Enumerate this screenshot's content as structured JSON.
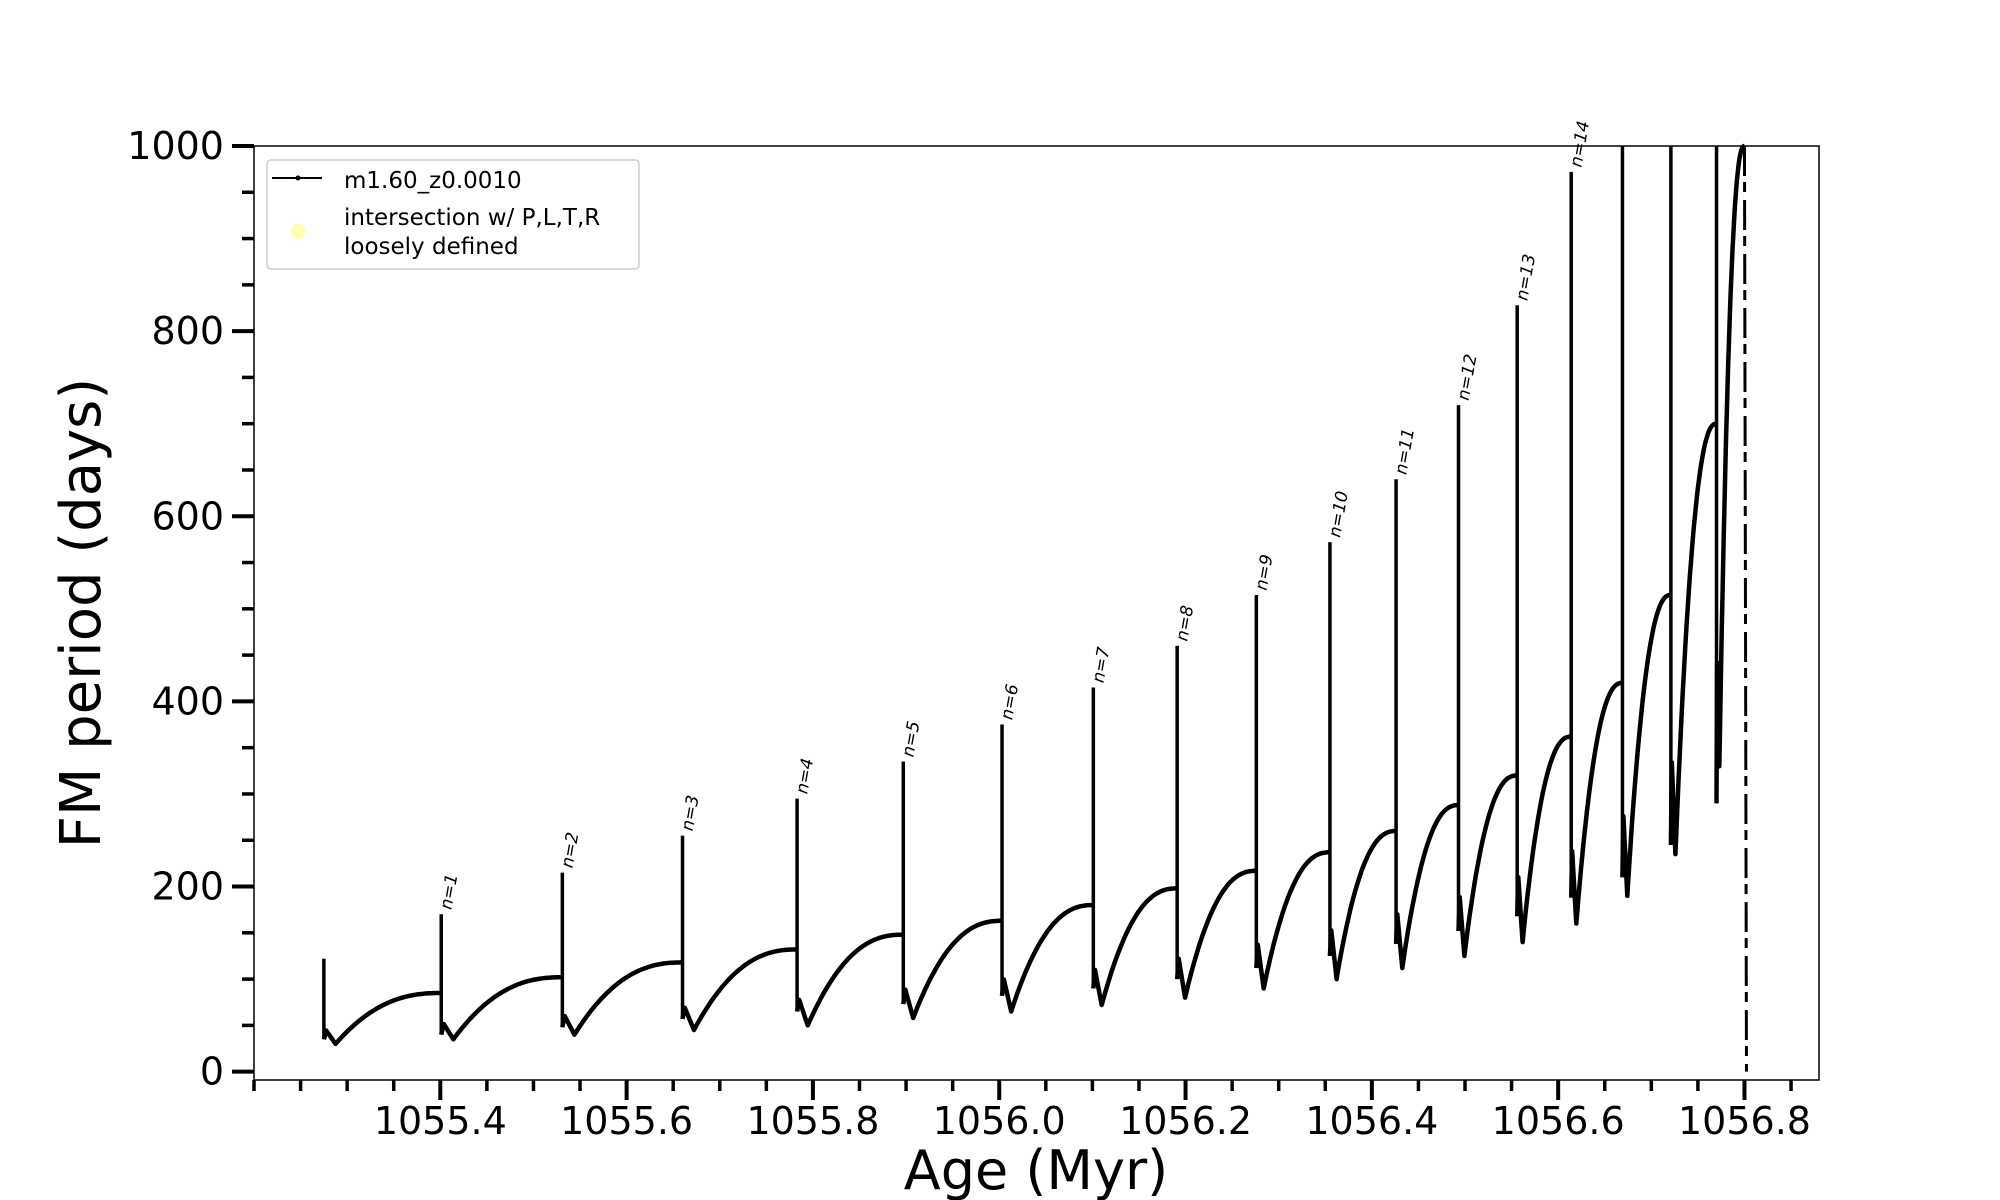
{
  "chart_data": {
    "type": "line",
    "title": "",
    "xlabel": "Age (Myr)",
    "ylabel": "FM period (days)",
    "xlim": [
      1055.2,
      1056.88
    ],
    "ylim": [
      -9,
      1000
    ],
    "xticks": [
      1055.4,
      1055.6,
      1055.8,
      1056.0,
      1056.2,
      1056.4,
      1056.6,
      1056.8
    ],
    "xtick_labels": [
      "1055.4",
      "1055.6",
      "1055.8",
      "1056.0",
      "1056.2",
      "1056.4",
      "1056.6",
      "1056.8"
    ],
    "xminor_step": 0.05,
    "yticks": [
      0,
      200,
      400,
      600,
      800,
      1000
    ],
    "ytick_labels": [
      "0",
      "200",
      "400",
      "600",
      "800",
      "1000"
    ],
    "yminor_step": 50,
    "grid": false,
    "legend": {
      "placement": "top-left",
      "entries": [
        {
          "label": "m1.60_z0.0010",
          "style": "line-with-dot",
          "color": "#000000"
        },
        {
          "label_lines": [
            "intersection w/ P,L,T,R",
            "loosely defined"
          ],
          "style": "circle",
          "color": "#ffffb0"
        }
      ]
    },
    "series": [
      {
        "name": "m1.60_z0.0010",
        "color": "#000000",
        "cycles": [
          {
            "age": 1055.275,
            "spike": 122,
            "spike_low": 35,
            "min": 30,
            "plateau": 85,
            "label": ""
          },
          {
            "age": 1055.401,
            "spike": 170,
            "spike_low": 40,
            "min": 35,
            "plateau": 102,
            "label": "n=1"
          },
          {
            "age": 1055.531,
            "spike": 215,
            "spike_low": 48,
            "min": 40,
            "plateau": 118,
            "label": "n=2"
          },
          {
            "age": 1055.66,
            "spike": 255,
            "spike_low": 57,
            "min": 45,
            "plateau": 132,
            "label": "n=3"
          },
          {
            "age": 1055.783,
            "spike": 295,
            "spike_low": 65,
            "min": 50,
            "plateau": 148,
            "label": "n=4"
          },
          {
            "age": 1055.897,
            "spike": 335,
            "spike_low": 73,
            "min": 58,
            "plateau": 163,
            "label": "n=5"
          },
          {
            "age": 1056.003,
            "spike": 375,
            "spike_low": 82,
            "min": 65,
            "plateau": 180,
            "label": "n=6"
          },
          {
            "age": 1056.101,
            "spike": 415,
            "spike_low": 90,
            "min": 72,
            "plateau": 198,
            "label": "n=7"
          },
          {
            "age": 1056.191,
            "spike": 460,
            "spike_low": 100,
            "min": 80,
            "plateau": 217,
            "label": "n=8"
          },
          {
            "age": 1056.276,
            "spike": 515,
            "spike_low": 112,
            "min": 90,
            "plateau": 237,
            "label": "n=9"
          },
          {
            "age": 1056.355,
            "spike": 572,
            "spike_low": 125,
            "min": 100,
            "plateau": 260,
            "label": "n=10"
          },
          {
            "age": 1056.426,
            "spike": 640,
            "spike_low": 138,
            "min": 112,
            "plateau": 288,
            "label": "n=11"
          },
          {
            "age": 1056.493,
            "spike": 720,
            "spike_low": 152,
            "min": 125,
            "plateau": 320,
            "label": "n=12"
          },
          {
            "age": 1056.556,
            "spike": 828,
            "spike_low": 168,
            "min": 140,
            "plateau": 362,
            "label": "n=13"
          },
          {
            "age": 1056.614,
            "spike": 972,
            "spike_low": 188,
            "min": 160,
            "plateau": 420,
            "label": "n=14"
          },
          {
            "age": 1056.669,
            "spike": 1000,
            "spike_low": 210,
            "min": 190,
            "plateau": 515,
            "label": ""
          },
          {
            "age": 1056.721,
            "spike": 1000,
            "spike_low": 245,
            "min": 235,
            "plateau": 700,
            "label": ""
          },
          {
            "age": 1056.77,
            "spike": 1000,
            "spike_low": 290,
            "min": 330,
            "plateau": 1000,
            "label": ""
          }
        ],
        "end": {
          "age": 1056.8,
          "spike_low": 0
        }
      }
    ]
  }
}
